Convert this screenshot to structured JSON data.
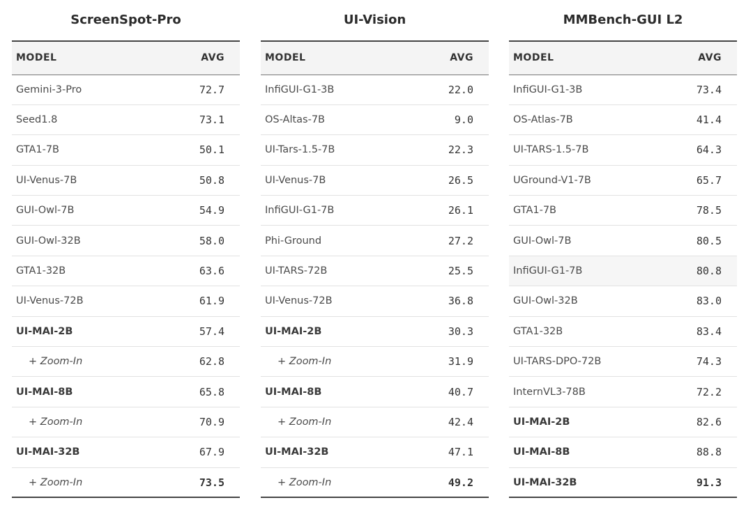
{
  "tables": [
    {
      "title": "ScreenSpot-Pro",
      "headers": {
        "model": "MODEL",
        "avg": "AVG"
      },
      "rows": [
        {
          "model": "Gemini-3-Pro",
          "avg": "72.7",
          "style": ""
        },
        {
          "model": "Seed1.8",
          "avg": "73.1",
          "style": ""
        },
        {
          "model": "GTA1-7B",
          "avg": "50.1",
          "style": ""
        },
        {
          "model": "UI-Venus-7B",
          "avg": "50.8",
          "style": ""
        },
        {
          "model": "GUI-Owl-7B",
          "avg": "54.9",
          "style": ""
        },
        {
          "model": "GUI-Owl-32B",
          "avg": "58.0",
          "style": ""
        },
        {
          "model": "GTA1-32B",
          "avg": "63.6",
          "style": ""
        },
        {
          "model": "UI-Venus-72B",
          "avg": "61.9",
          "style": ""
        },
        {
          "model": "UI-MAI-2B",
          "avg": "57.4",
          "style": "bold"
        },
        {
          "model": "+ Zoom-In",
          "avg": "62.8",
          "style": "sub"
        },
        {
          "model": "UI-MAI-8B",
          "avg": "65.8",
          "style": "bold"
        },
        {
          "model": "+ Zoom-In",
          "avg": "70.9",
          "style": "sub"
        },
        {
          "model": "UI-MAI-32B",
          "avg": "67.9",
          "style": "bold"
        },
        {
          "model": "+ Zoom-In",
          "avg": "73.5",
          "style": "sub bold-avg"
        }
      ]
    },
    {
      "title": "UI-Vision",
      "headers": {
        "model": "MODEL",
        "avg": "AVG"
      },
      "rows": [
        {
          "model": "InfiGUI-G1-3B",
          "avg": "22.0",
          "style": ""
        },
        {
          "model": "OS-Altas-7B",
          "avg": "9.0",
          "style": ""
        },
        {
          "model": "UI-Tars-1.5-7B",
          "avg": "22.3",
          "style": ""
        },
        {
          "model": "UI-Venus-7B",
          "avg": "26.5",
          "style": ""
        },
        {
          "model": "InfiGUI-G1-7B",
          "avg": "26.1",
          "style": ""
        },
        {
          "model": "Phi-Ground",
          "avg": "27.2",
          "style": ""
        },
        {
          "model": "UI-TARS-72B",
          "avg": "25.5",
          "style": ""
        },
        {
          "model": "UI-Venus-72B",
          "avg": "36.8",
          "style": ""
        },
        {
          "model": "UI-MAI-2B",
          "avg": "30.3",
          "style": "bold"
        },
        {
          "model": "+ Zoom-In",
          "avg": "31.9",
          "style": "sub"
        },
        {
          "model": "UI-MAI-8B",
          "avg": "40.7",
          "style": "bold"
        },
        {
          "model": "+ Zoom-In",
          "avg": "42.4",
          "style": "sub"
        },
        {
          "model": "UI-MAI-32B",
          "avg": "47.1",
          "style": "bold"
        },
        {
          "model": "+ Zoom-In",
          "avg": "49.2",
          "style": "sub bold-avg"
        }
      ]
    },
    {
      "title": "MMBench-GUI L2",
      "headers": {
        "model": "MODEL",
        "avg": "AVG"
      },
      "rows": [
        {
          "model": "InfiGUI-G1-3B",
          "avg": "73.4",
          "style": ""
        },
        {
          "model": "OS-Atlas-7B",
          "avg": "41.4",
          "style": ""
        },
        {
          "model": "UI-TARS-1.5-7B",
          "avg": "64.3",
          "style": ""
        },
        {
          "model": "UGround-V1-7B",
          "avg": "65.7",
          "style": ""
        },
        {
          "model": "GTA1-7B",
          "avg": "78.5",
          "style": ""
        },
        {
          "model": "GUI-Owl-7B",
          "avg": "80.5",
          "style": ""
        },
        {
          "model": "InfiGUI-G1-7B",
          "avg": "80.8",
          "style": "shade"
        },
        {
          "model": "GUI-Owl-32B",
          "avg": "83.0",
          "style": ""
        },
        {
          "model": "GTA1-32B",
          "avg": "83.4",
          "style": ""
        },
        {
          "model": "UI-TARS-DPO-72B",
          "avg": "74.3",
          "style": ""
        },
        {
          "model": "InternVL3-78B",
          "avg": "72.2",
          "style": ""
        },
        {
          "model": "UI-MAI-2B",
          "avg": "82.6",
          "style": "bold"
        },
        {
          "model": "UI-MAI-8B",
          "avg": "88.8",
          "style": "bold"
        },
        {
          "model": "UI-MAI-32B",
          "avg": "91.3",
          "style": "bold bold-avg"
        }
      ]
    }
  ]
}
